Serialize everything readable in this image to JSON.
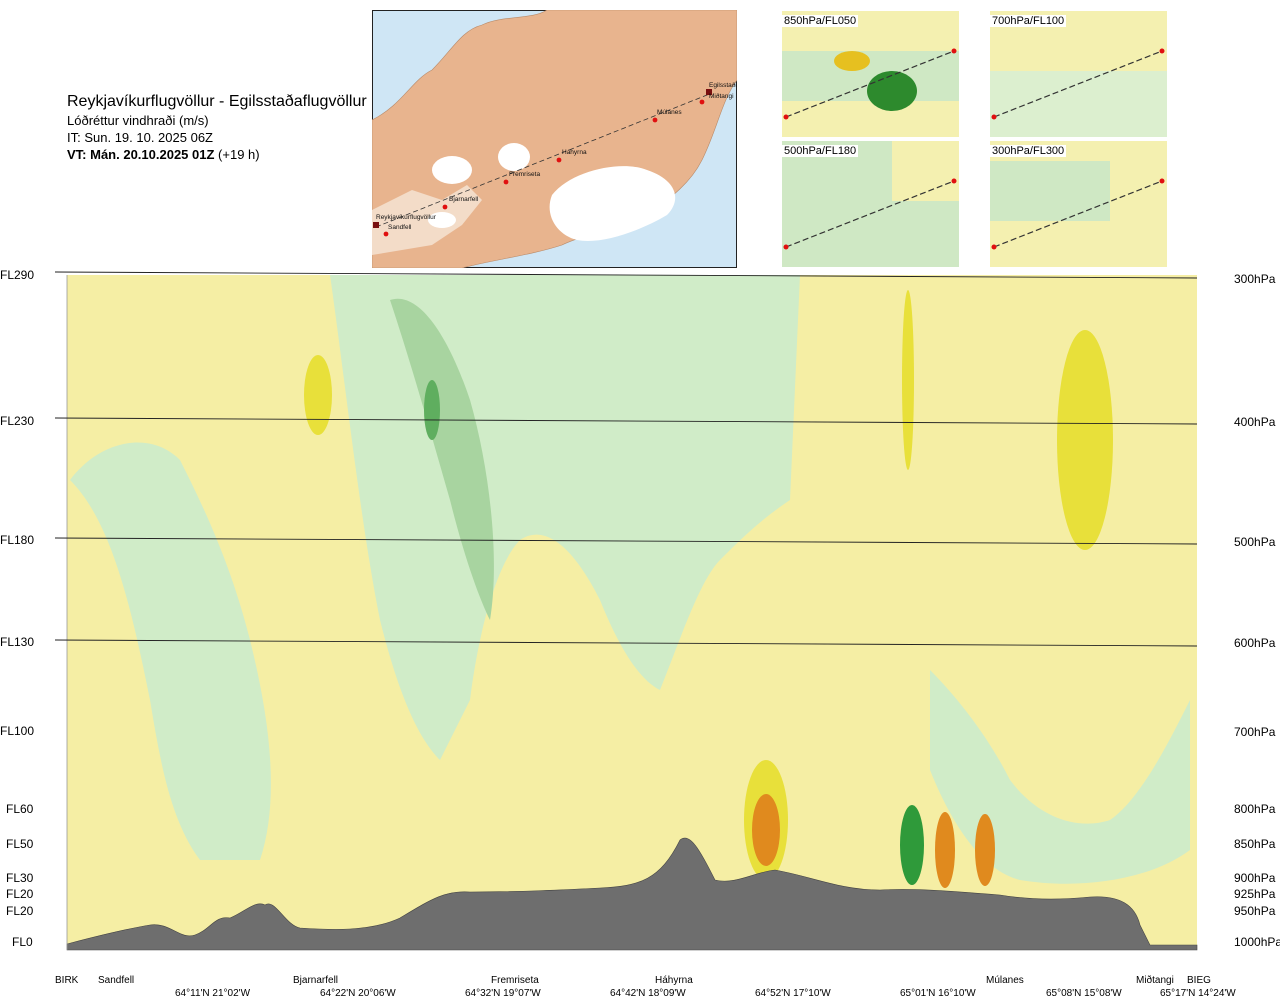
{
  "header": {
    "title": "Reykjavíkurflugvöllur - Egilsstaðaflugvöllur",
    "subtitle": "Lóðréttur vindhraði (m/s)",
    "issue_time": "IT: Sun. 19. 10. 2025 06Z",
    "valid_time": "VT: Mán. 20.10.2025 01Z",
    "valid_offset": "(+19 h)"
  },
  "map": {
    "places": [
      "Reykjavíkurflugvöllur",
      "Sandfell",
      "Bjarnarfell",
      "Fremriseta",
      "Háhyrna",
      "Múlanes",
      "Egilsstaðir",
      "Miðtangi"
    ]
  },
  "thumbnails": [
    {
      "title": "850hPa/FL050"
    },
    {
      "title": "700hPa/FL100"
    },
    {
      "title": "500hPa/FL180"
    },
    {
      "title": "300hPa/FL300"
    }
  ],
  "left_axis": [
    "FL290",
    "FL230",
    "FL180",
    "FL130",
    "FL100",
    "FL60",
    "FL50",
    "FL30",
    "FL20",
    "FL20",
    "FL0"
  ],
  "right_axis": [
    "300hPa",
    "400hPa",
    "500hPa",
    "600hPa",
    "700hPa",
    "800hPa",
    "850hPa",
    "900hPa",
    "925hPa",
    "950hPa",
    "1000hPa"
  ],
  "bottom_axis": {
    "waypoints": [
      "BIRK",
      "Sandfell",
      "Bjarnarfell",
      "Fremriseta",
      "Háhyrna",
      "Múlanes",
      "Miðtangi",
      "BIEG"
    ],
    "coords": [
      "64°11'N 21°02'W",
      "64°22'N 20°06'W",
      "64°32'N 19°07'W",
      "64°42'N 18°09'W",
      "64°52'N 17°10'W",
      "65°01'N 16°10'W",
      "65°08'N 15°08'W",
      "65°17'N 14°24'W"
    ]
  },
  "colors": {
    "strong_up_orange": "#e08a1e",
    "up_yellow": "#e8e03a",
    "weak_up": "#f5eea4",
    "weak_down": "#d0ecc8",
    "down_green": "#a8d4a0",
    "strong_down": "#2f9a3a",
    "terrain": "#6e6e6e",
    "sea": "#cfe6f5",
    "land": "#e8b48e"
  },
  "chart_data": {
    "type": "heatmap",
    "title": "Reykjavíkurflugvöllur - Egilsstaðaflugvöllur",
    "subtitle": "Lóðréttur vindhraði (m/s)",
    "y_levels_fl": [
      "FL290",
      "FL230",
      "FL180",
      "FL130",
      "FL100",
      "FL60",
      "FL50",
      "FL30",
      "FL20",
      "FL20",
      "FL0"
    ],
    "y_levels_hpa": [
      "300hPa",
      "400hPa",
      "500hPa",
      "600hPa",
      "700hPa",
      "800hPa",
      "850hPa",
      "900hPa",
      "925hPa",
      "950hPa",
      "1000hPa"
    ],
    "x_waypoints": [
      "BIRK",
      "Sandfell",
      "Bjarnarfell",
      "Fremriseta",
      "Háhyrna",
      "Múlanes",
      "Miðtangi",
      "BIEG"
    ],
    "x_coords": [
      "64°11'N 21°02'W",
      "64°22'N 20°06'W",
      "64°32'N 19°07'W",
      "64°42'N 18°09'W",
      "64°52'N 17°10'W",
      "65°01'N 16°10'W",
      "65°08'N 15°08'W",
      "65°17'N 14°24'W"
    ],
    "grid": false,
    "legend": "none"
  }
}
